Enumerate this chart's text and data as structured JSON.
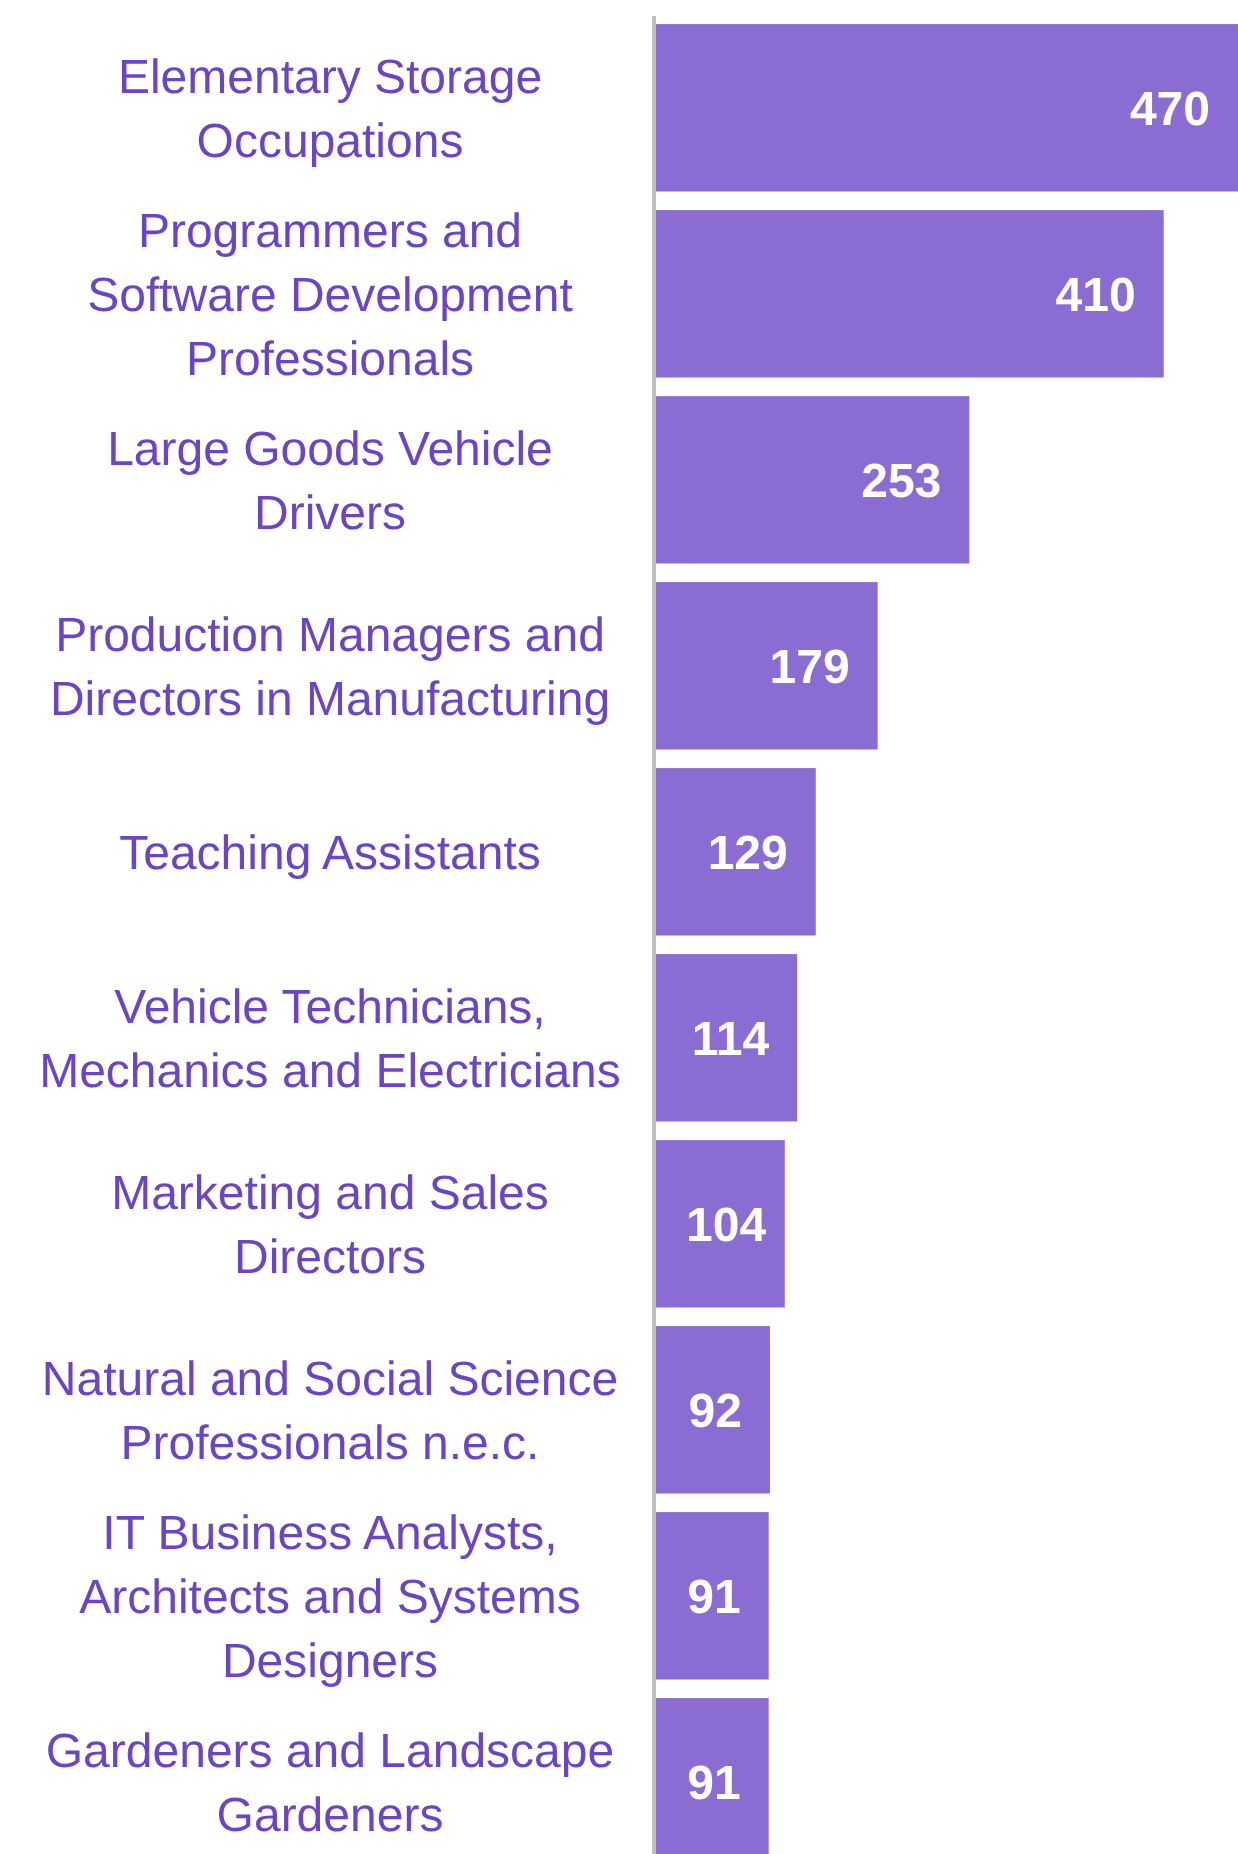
{
  "chart_data": {
    "type": "bar",
    "orientation": "horizontal",
    "data_labels": true,
    "color": "#8b6cd3",
    "categories": [
      "Elementary Storage Occupations",
      "Programmers and Software Development Professionals",
      "Large Goods Vehicle Drivers",
      "Production Managers and Directors in Manufacturing",
      "Teaching Assistants",
      "Vehicle Technicians, Mechanics and Electricians",
      "Marketing and Sales Directors",
      "Natural and Social Science Professionals n.e.c.",
      "IT Business Analysts, Architects and Systems Designers",
      "Gardeners and Landscape Gardeners"
    ],
    "values": [
      470,
      410,
      253,
      179,
      129,
      114,
      104,
      92,
      91,
      91
    ]
  }
}
